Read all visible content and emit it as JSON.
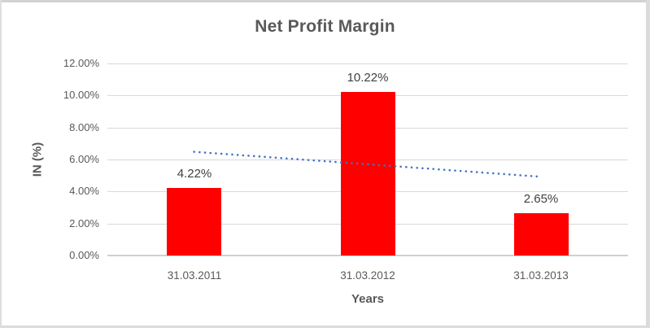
{
  "chart": {
    "border_color": "#d8d8d8",
    "background": "#ffffff"
  },
  "chart_data": {
    "type": "bar",
    "title": "Net Profit Margin",
    "xlabel": "Years",
    "ylabel": "IN (%)",
    "categories": [
      "31.03.2011",
      "31.03.2012",
      "31.03.2013"
    ],
    "values": [
      4.22,
      10.22,
      2.65
    ],
    "data_labels": [
      "4.22%",
      "10.22%",
      "2.65%"
    ],
    "y_ticks": [
      {
        "value": 12,
        "label": "12.00%"
      },
      {
        "value": 10,
        "label": "10.00%"
      },
      {
        "value": 8,
        "label": "8.00%"
      },
      {
        "value": 6,
        "label": "6.00%"
      },
      {
        "value": 4,
        "label": "4.00%"
      },
      {
        "value": 2,
        "label": "2.00%"
      },
      {
        "value": 0,
        "label": "0.00%"
      }
    ],
    "ylim": [
      0,
      12
    ],
    "grid": true,
    "legend": "none",
    "colors": {
      "bar": "#ff0000",
      "trendline": "#4472c4",
      "gridline": "#d9d9d9",
      "axis_text": "#595959",
      "data_label_text": "#404040",
      "title_text": "#595959"
    },
    "trendline": {
      "type": "linear",
      "style": "dotted",
      "color": "#4472c4",
      "start_value": 6.48,
      "end_value": 4.92
    }
  }
}
